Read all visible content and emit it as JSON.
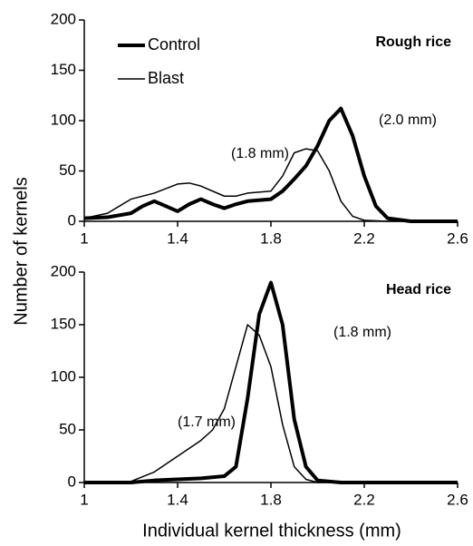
{
  "chart_data": [
    {
      "type": "line",
      "title": "Rough rice",
      "annotations": [
        "(1.8 mm)",
        "(2.0 mm)"
      ],
      "xlim": [
        1,
        2.6
      ],
      "xticks": [
        1,
        1.4,
        1.8,
        2.2,
        2.6
      ],
      "ylim": [
        0,
        200
      ],
      "yticks": [
        0,
        50,
        100,
        150,
        200
      ],
      "series": [
        {
          "name": "Control",
          "color": "#000000",
          "width": 4,
          "x": [
            1.0,
            1.1,
            1.2,
            1.25,
            1.3,
            1.35,
            1.4,
            1.45,
            1.5,
            1.55,
            1.6,
            1.65,
            1.7,
            1.8,
            1.85,
            1.9,
            1.95,
            2.0,
            2.05,
            2.1,
            2.15,
            2.2,
            2.25,
            2.3,
            2.4,
            2.6
          ],
          "values": [
            3,
            4,
            8,
            15,
            20,
            15,
            10,
            17,
            22,
            17,
            13,
            17,
            20,
            22,
            30,
            42,
            55,
            75,
            100,
            112,
            85,
            45,
            15,
            3,
            0,
            0
          ]
        },
        {
          "name": "Blast",
          "color": "#000000",
          "width": 1.5,
          "x": [
            1.0,
            1.1,
            1.2,
            1.3,
            1.4,
            1.45,
            1.5,
            1.6,
            1.65,
            1.7,
            1.8,
            1.85,
            1.9,
            1.95,
            2.0,
            2.05,
            2.1,
            2.15,
            2.2,
            2.3,
            2.6
          ],
          "values": [
            3,
            8,
            22,
            28,
            37,
            38,
            35,
            25,
            25,
            28,
            30,
            45,
            68,
            72,
            70,
            50,
            20,
            5,
            1,
            0,
            0
          ]
        }
      ]
    },
    {
      "type": "line",
      "title": "Head rice",
      "annotations": [
        "(1.8 mm)",
        "(1.7 mm)"
      ],
      "xlim": [
        1,
        2.6
      ],
      "xticks": [
        1,
        1.4,
        1.8,
        2.2,
        2.6
      ],
      "ylim": [
        0,
        200
      ],
      "yticks": [
        0,
        50,
        100,
        150,
        200
      ],
      "series": [
        {
          "color": "#000000",
          "width": 4,
          "x": [
            1.0,
            1.2,
            1.3,
            1.4,
            1.5,
            1.6,
            1.65,
            1.7,
            1.75,
            1.8,
            1.85,
            1.9,
            1.95,
            2.0,
            2.1,
            2.6
          ],
          "values": [
            0,
            0,
            2,
            3,
            4,
            6,
            15,
            80,
            160,
            190,
            150,
            60,
            15,
            2,
            0,
            0
          ]
        },
        {
          "color": "#000000",
          "width": 1.5,
          "x": [
            1.0,
            1.2,
            1.3,
            1.4,
            1.5,
            1.55,
            1.6,
            1.65,
            1.7,
            1.75,
            1.8,
            1.85,
            1.9,
            1.95,
            2.0,
            2.6
          ],
          "values": [
            0,
            1,
            10,
            25,
            40,
            50,
            70,
            110,
            150,
            140,
            110,
            55,
            15,
            3,
            0,
            0
          ]
        }
      ]
    }
  ],
  "y_label": "Number of kernels",
  "x_label": "Individual kernel thickness (mm)"
}
